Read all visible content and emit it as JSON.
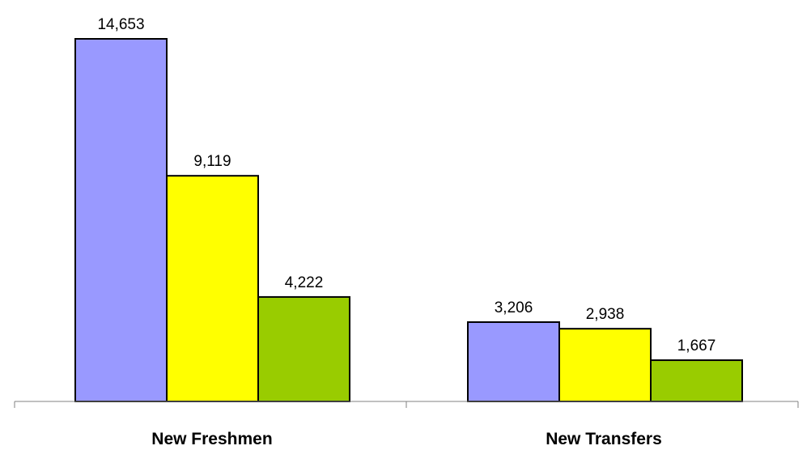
{
  "chart_data": {
    "type": "bar",
    "categories": [
      "New Freshmen",
      "New Transfers"
    ],
    "series": [
      {
        "color": "#9999ff",
        "values": [
          14653,
          3206
        ],
        "labels": [
          "14,653",
          "3,206"
        ]
      },
      {
        "color": "#ffff00",
        "values": [
          9119,
          2938
        ],
        "labels": [
          "9,119",
          "2,938"
        ]
      },
      {
        "color": "#99cc00",
        "values": [
          4222,
          1667
        ],
        "labels": [
          "4,222",
          "1,667"
        ]
      }
    ],
    "title": "",
    "xlabel": "",
    "ylabel": "",
    "ylim": [
      0,
      14653
    ],
    "grid": false,
    "legend": "none"
  }
}
